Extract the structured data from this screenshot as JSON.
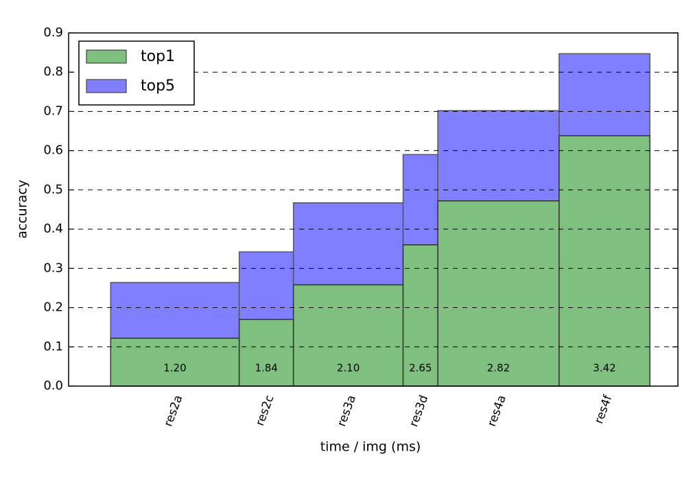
{
  "chart_data": {
    "type": "variable-width-bar",
    "xlabel": "time / img (ms)",
    "ylabel": "accuracy",
    "categories": [
      "res2a",
      "res2c",
      "res3a",
      "res3d",
      "res4a",
      "res4f"
    ],
    "bins": [
      0.69,
      2.8,
      3.69,
      5.49,
      6.06,
      8.05,
      9.54
    ],
    "xlim": [
      0,
      10
    ],
    "series": [
      {
        "name": "top1",
        "color": "#7fbf7f",
        "values": [
          0.122,
          0.17,
          0.258,
          0.36,
          0.472,
          0.638
        ]
      },
      {
        "name": "top5",
        "color": "#7f7fff",
        "values": [
          0.264,
          0.342,
          0.467,
          0.59,
          0.702,
          0.847
        ]
      }
    ],
    "bar_labels": [
      "1.20",
      "1.84",
      "2.10",
      "2.65",
      "2.82",
      "3.42"
    ],
    "ylim": [
      0,
      0.9
    ],
    "yticks": [
      {
        "value": 0,
        "label": "0.0"
      },
      0.1,
      0.2,
      0.3,
      0.4,
      0.5,
      0.6,
      0.7,
      0.8,
      0.9
    ],
    "grid": true,
    "legend": "upper-left"
  }
}
